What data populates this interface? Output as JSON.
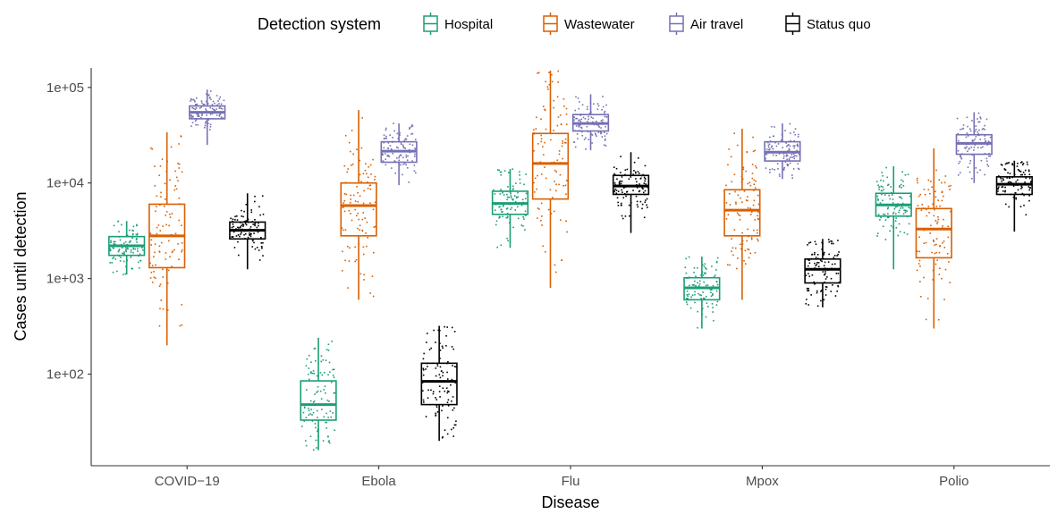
{
  "chart_data": {
    "type": "box",
    "xlabel": "Disease",
    "ylabel": "Cases until detection",
    "y_scale": "log10",
    "ylim": [
      11,
      160000
    ],
    "y_ticks": [
      {
        "value": 100,
        "label": "1e+02"
      },
      {
        "value": 1000,
        "label": "1e+03"
      },
      {
        "value": 10000,
        "label": "1e+04"
      },
      {
        "value": 100000,
        "label": "1e+05"
      }
    ],
    "grid": false,
    "legend": {
      "title": "Detection system",
      "position": "top"
    },
    "categories": [
      "COVID−19",
      "Ebola",
      "Flu",
      "Mpox",
      "Polio"
    ],
    "series": [
      {
        "name": "Hospital",
        "color": "#1b9e77",
        "boxes": [
          {
            "min": 1100,
            "q1": 1750,
            "median": 2200,
            "q3": 2750,
            "max": 4000
          },
          {
            "min": 16,
            "q1": 33,
            "median": 48,
            "q3": 85,
            "max": 240
          },
          {
            "min": 2100,
            "q1": 4700,
            "median": 6100,
            "q3": 8200,
            "max": 14000
          },
          {
            "min": 300,
            "q1": 600,
            "median": 800,
            "q3": 1020,
            "max": 1700
          },
          {
            "min": 1250,
            "q1": 4500,
            "median": 5900,
            "q3": 7800,
            "max": 15000
          }
        ]
      },
      {
        "name": "Wastewater",
        "color": "#d95f02",
        "boxes": [
          {
            "min": 200,
            "q1": 1300,
            "median": 2800,
            "q3": 6000,
            "max": 34000
          },
          {
            "min": 600,
            "q1": 2800,
            "median": 5800,
            "q3": 10000,
            "max": 58000
          },
          {
            "min": 800,
            "q1": 6800,
            "median": 16000,
            "q3": 33000,
            "max": 150000
          },
          {
            "min": 600,
            "q1": 2800,
            "median": 5200,
            "q3": 8500,
            "max": 37000
          },
          {
            "min": 300,
            "q1": 1650,
            "median": 3300,
            "q3": 5400,
            "max": 23000
          }
        ]
      },
      {
        "name": "Air travel",
        "color": "#7570b3",
        "boxes": [
          {
            "min": 25000,
            "q1": 47000,
            "median": 55000,
            "q3": 64000,
            "max": 95000
          },
          {
            "min": 9500,
            "q1": 16500,
            "median": 21500,
            "q3": 27000,
            "max": 42000
          },
          {
            "min": 22000,
            "q1": 35000,
            "median": 42000,
            "q3": 52000,
            "max": 85000
          },
          {
            "min": 11000,
            "q1": 17000,
            "median": 21000,
            "q3": 27000,
            "max": 42000
          },
          {
            "min": 10000,
            "q1": 20000,
            "median": 26000,
            "q3": 32000,
            "max": 55000
          }
        ]
      },
      {
        "name": "Status quo",
        "color": "#000000",
        "boxes": [
          {
            "min": 1250,
            "q1": 2600,
            "median": 3200,
            "q3": 3900,
            "max": 7800
          },
          {
            "min": 20,
            "q1": 48,
            "median": 84,
            "q3": 130,
            "max": 320
          },
          {
            "min": 3000,
            "q1": 7600,
            "median": 9300,
            "q3": 12000,
            "max": 21000
          },
          {
            "min": 500,
            "q1": 900,
            "median": 1250,
            "q3": 1600,
            "max": 2600
          },
          {
            "min": 3100,
            "q1": 7600,
            "median": 9700,
            "q3": 11600,
            "max": 17000
          }
        ]
      }
    ]
  }
}
